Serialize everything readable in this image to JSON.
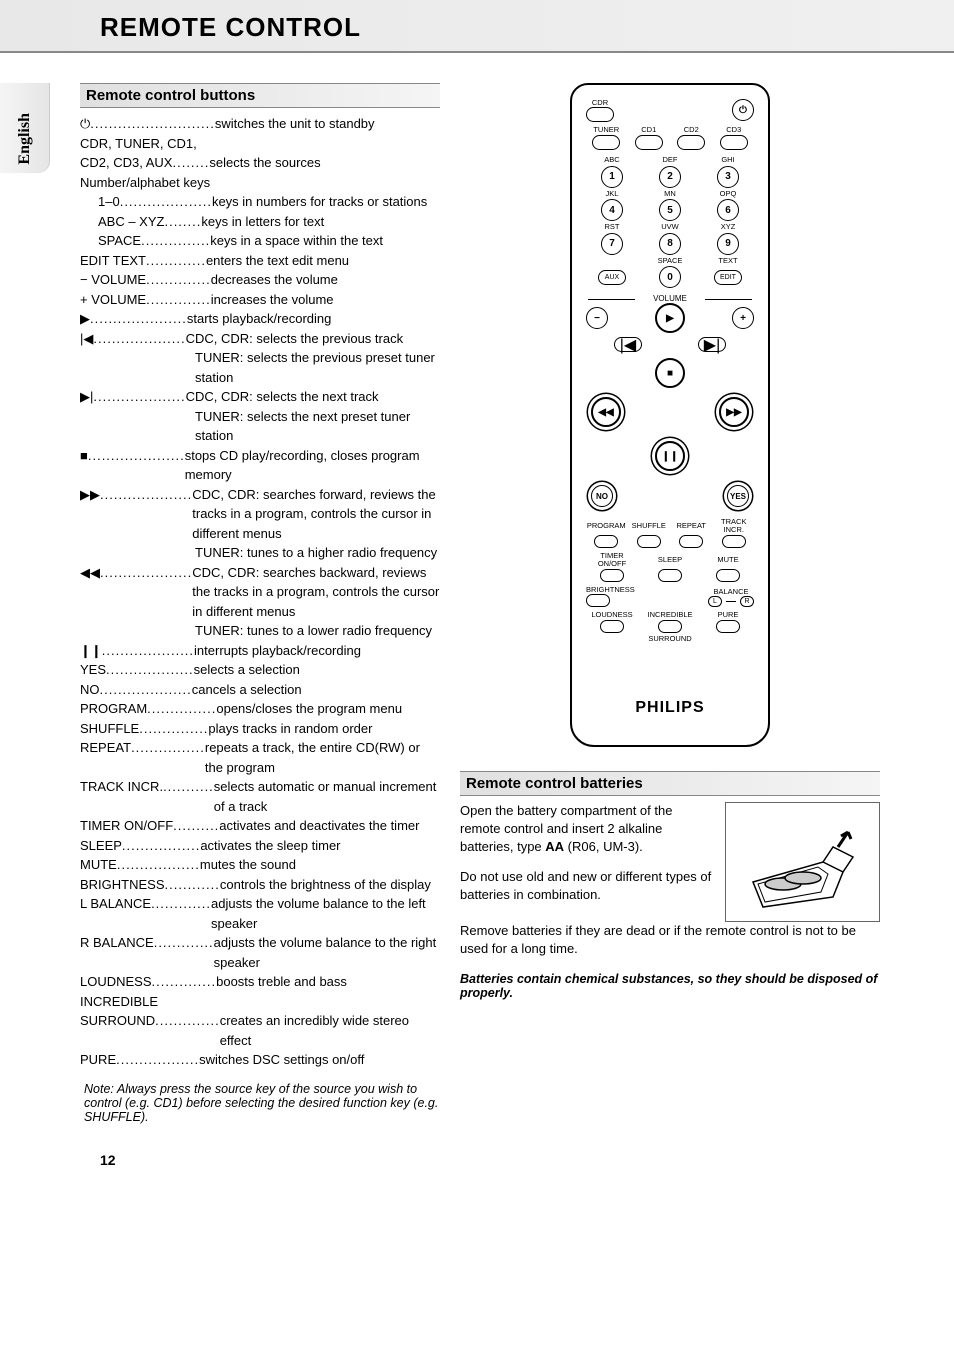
{
  "header": {
    "title": "REMOTE CONTROL"
  },
  "sideTab": "English",
  "sections": {
    "buttons": "Remote control buttons",
    "batteries": "Remote control batteries"
  },
  "intro": {
    "power": {
      "sym": "⏻",
      "desc": "switches the unit to standby"
    },
    "sources1": "CDR, TUNER, CD1,",
    "sources2": "CD2, CD3, AUX",
    "sources2desc": "selects the sources",
    "numalpha": "Number/alphabet keys",
    "k1": {
      "key": "1–0",
      "desc": "keys in numbers for tracks or stations"
    },
    "k2": {
      "key": "ABC – XYZ",
      "desc": "keys in letters for text"
    },
    "k3": {
      "key": "SPACE",
      "desc": "keys in a space within the text"
    }
  },
  "items": [
    {
      "key": "EDIT TEXT",
      "desc": "enters the text edit menu"
    },
    {
      "key": "− VOLUME",
      "desc": "decreases the volume"
    },
    {
      "key": "+ VOLUME",
      "desc": "increases the volume"
    },
    {
      "key": "▶",
      "desc": "starts playback/recording"
    },
    {
      "key": "|◀",
      "desc": "CDC, CDR: selects the previous track",
      "cont": [
        "TUNER: selects the previous preset tuner station"
      ]
    },
    {
      "key": "▶|",
      "desc": "CDC, CDR: selects the next track",
      "cont": [
        "TUNER: selects the next preset tuner station"
      ]
    },
    {
      "key": "■",
      "desc": "stops CD play/recording, closes program memory"
    },
    {
      "key": "▶▶",
      "desc": "CDC, CDR: searches forward, reviews the tracks in a program, controls the cursor in different menus",
      "cont": [
        "TUNER: tunes to a higher radio frequency"
      ]
    },
    {
      "key": "◀◀",
      "desc": "CDC, CDR: searches backward, reviews the tracks in a program, controls the cursor in different menus",
      "cont": [
        "TUNER: tunes to a lower radio frequency"
      ]
    },
    {
      "key": "❙❙",
      "desc": "interrupts playback/recording"
    },
    {
      "key": "YES",
      "desc": "selects a selection"
    },
    {
      "key": "NO",
      "desc": "cancels a selection"
    },
    {
      "key": "PROGRAM",
      "desc": "opens/closes the program menu"
    },
    {
      "key": "SHUFFLE",
      "desc": "plays tracks in random order"
    },
    {
      "key": "REPEAT",
      "desc": "repeats a track, the entire CD(RW) or the program"
    },
    {
      "key": "TRACK INCR.",
      "desc": "selects automatic or manual increment of a track"
    },
    {
      "key": "TIMER ON/OFF",
      "desc": "activates and deactivates the timer"
    },
    {
      "key": "SLEEP",
      "desc": "activates the sleep timer"
    },
    {
      "key": "MUTE",
      "desc": "mutes the sound"
    },
    {
      "key": "BRIGHTNESS",
      "desc": "controls the brightness of the display"
    },
    {
      "key": "L BALANCE",
      "desc": "adjusts the volume balance to the left speaker"
    },
    {
      "key": "R BALANCE",
      "desc": "adjusts the volume balance to the right speaker"
    },
    {
      "key": "LOUDNESS",
      "desc": "boosts treble and bass"
    },
    {
      "key": "INCREDIBLE",
      "desc": ""
    },
    {
      "key": "SURROUND",
      "desc": "creates an incredibly wide stereo effect"
    },
    {
      "key": "PURE",
      "desc": "switches DSC settings on/off"
    }
  ],
  "note": {
    "label": "Note:",
    "text": "Always press the source key of the source you wish to control (e.g. CD1) before selecting the desired function key (e.g. SHUFFLE)."
  },
  "remote": {
    "labels": {
      "cdr": "CDR",
      "tuner": "TUNER",
      "cd1": "CD1",
      "cd2": "CD2",
      "cd3": "CD3",
      "abc": "ABC",
      "def": "DEF",
      "ghi": "GHI",
      "jkl": "JKL",
      "mn": "MN",
      "opq": "OPQ",
      "rst": "RST",
      "uvw": "UVW",
      "xyz": "XYZ",
      "space": "SPACE",
      "text": "TEXT",
      "aux": "AUX",
      "edit": "EDIT",
      "volume": "VOLUME",
      "no": "NO",
      "yes": "YES",
      "program": "PROGRAM",
      "shuffle": "SHUFFLE",
      "repeat": "REPEAT",
      "trackincr": "TRACK INCR.",
      "timer": "TIMER ON/OFF",
      "sleep": "SLEEP",
      "mute": "MUTE",
      "brightness": "BRIGHTNESS",
      "balance": "BALANCE",
      "loudness": "LOUDNESS",
      "incredible": "INCREDIBLE",
      "pure": "PURE",
      "surround": "SURROUND",
      "L": "L",
      "R": "R"
    },
    "nums": [
      "1",
      "2",
      "3",
      "4",
      "5",
      "6",
      "7",
      "8",
      "9",
      "0"
    ],
    "brand": "PHILIPS"
  },
  "batteries": {
    "p1a": "Open the battery compartment of the remote control and insert 2 alkaline batteries, type ",
    "p1b": "AA",
    "p1c": " (R06, UM-3).",
    "p2": "Do not use old and new or different types of batteries in combination.",
    "p3": "Remove batteries if they are dead or if the remote control is not to be used for a long time.",
    "warn": "Batteries contain chemical substances, so they should be disposed of properly."
  },
  "pageNum": "12"
}
